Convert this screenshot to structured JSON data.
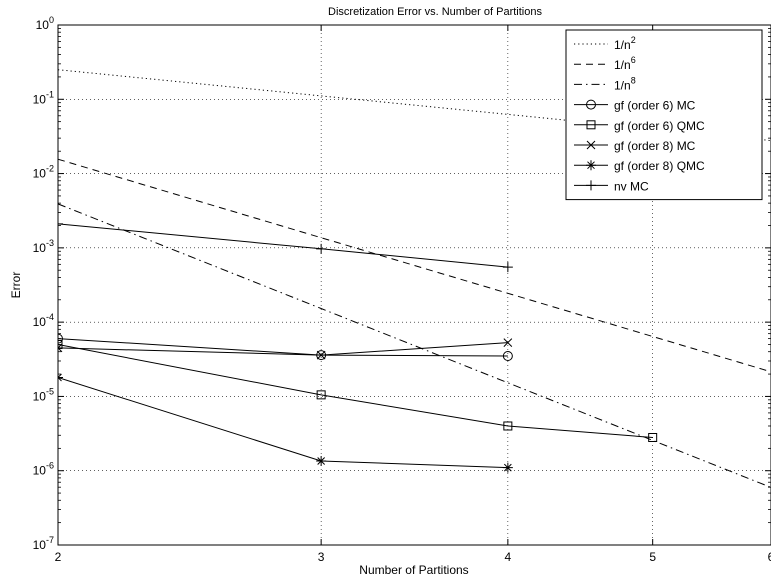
{
  "chart_data": {
    "type": "line",
    "title": "Discretization Error vs. Number of Partitions",
    "xlabel": "Number of Partitions",
    "ylabel": "Error",
    "xscale": "log",
    "yscale": "log",
    "xlim": [
      2,
      6
    ],
    "ylim": [
      1e-07,
      1
    ],
    "xticks": [
      2,
      3,
      4,
      5,
      6
    ],
    "xtick_labels": [
      "2",
      "3",
      "4",
      "5",
      "6"
    ],
    "yticks": [
      {
        "value": 1,
        "base": "10",
        "exp": "0"
      },
      {
        "value": 0.1,
        "base": "10",
        "exp": "-1"
      },
      {
        "value": 0.01,
        "base": "10",
        "exp": "-2"
      },
      {
        "value": 0.001,
        "base": "10",
        "exp": "-3"
      },
      {
        "value": 0.0001,
        "base": "10",
        "exp": "-4"
      },
      {
        "value": 1e-05,
        "base": "10",
        "exp": "-5"
      },
      {
        "value": 1e-06,
        "base": "10",
        "exp": "-6"
      },
      {
        "value": 1e-07,
        "base": "10",
        "exp": "-7"
      }
    ],
    "grid": true,
    "legend_position": "top-right",
    "series": [
      {
        "name": "1/n",
        "name_sup": "2",
        "line": "dotted",
        "marker": "none",
        "x": [
          2,
          3,
          4,
          5,
          6
        ],
        "y": [
          0.25,
          0.1111,
          0.0625,
          0.04,
          0.02778
        ]
      },
      {
        "name": "1/n",
        "name_sup": "6",
        "line": "dashed",
        "marker": "none",
        "x": [
          2,
          3,
          4,
          5,
          6
        ],
        "y": [
          0.015625,
          0.0013717,
          0.00024414,
          6.4e-05,
          2.1433e-05
        ]
      },
      {
        "name": "1/n",
        "name_sup": "8",
        "line": "dashdot",
        "marker": "none",
        "x": [
          2,
          3,
          4,
          5,
          6
        ],
        "y": [
          0.00390625,
          0.00015242,
          1.5259e-05,
          2.56e-06,
          5.9537e-07
        ]
      },
      {
        "name": "gf (order 6) MC",
        "line": "solid",
        "marker": "circle",
        "x": [
          2,
          3,
          4
        ],
        "y": [
          6e-05,
          3.6e-05,
          3.5e-05
        ]
      },
      {
        "name": "gf (order 6) QMC",
        "line": "solid",
        "marker": "square",
        "x": [
          2,
          3,
          4,
          5
        ],
        "y": [
          5e-05,
          1.05e-05,
          4e-06,
          2.8e-06
        ]
      },
      {
        "name": "gf (order 8) MC",
        "line": "solid",
        "marker": "x",
        "x": [
          2,
          3,
          4
        ],
        "y": [
          4.5e-05,
          3.6e-05,
          5.3e-05
        ]
      },
      {
        "name": "gf (order 8) QMC",
        "line": "solid",
        "marker": "asterisk",
        "x": [
          2,
          3,
          4
        ],
        "y": [
          1.8e-05,
          1.35e-06,
          1.1e-06
        ]
      },
      {
        "name": "nv MC",
        "line": "solid",
        "marker": "plus",
        "x": [
          2,
          3,
          4
        ],
        "y": [
          0.0021,
          0.00097,
          0.00055
        ]
      }
    ]
  }
}
